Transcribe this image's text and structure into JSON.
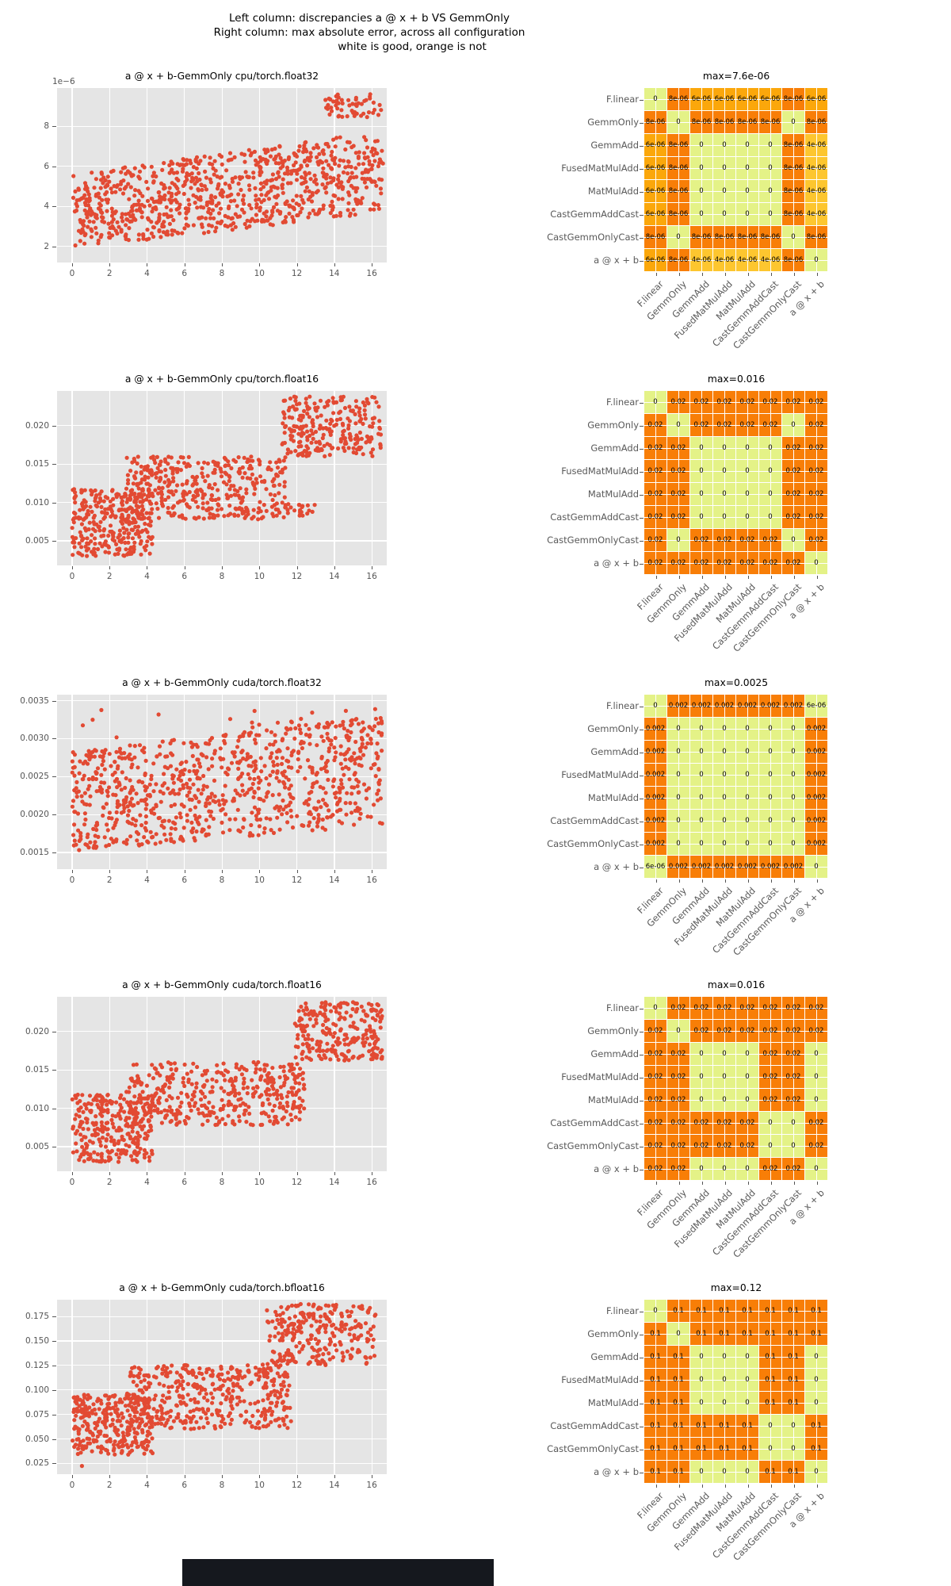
{
  "suptitle": {
    "line1": "Left column: discrepancies a @ x + b VS GemmOnly",
    "line2": "Right column: max absolute error, across all configuration",
    "line3": "white is good, orange is not"
  },
  "method_labels": [
    "F.linear",
    "GemmOnly",
    "GemmAdd",
    "FusedMatMulAdd",
    "MatMulAdd",
    "CastGemmAddCast",
    "CastGemmOnlyCast",
    "a @ x + b"
  ],
  "colors": {
    "point": "#e24a33",
    "plot_background": "#e5e5e5",
    "grid_line": "#ffffff",
    "tick_label": "#555555",
    "title_text": "#000000",
    "heat_scale": {
      "zero": "#e4f287",
      "low": "#fdc62f",
      "mid": "#fba70b",
      "high": "#f87e07"
    },
    "artifact_bar": "#15181e"
  },
  "scatter_xticks": [
    {
      "v": 0,
      "label": "0"
    },
    {
      "v": 2,
      "label": "2"
    },
    {
      "v": 4,
      "label": "4"
    },
    {
      "v": 6,
      "label": "6"
    },
    {
      "v": 8,
      "label": "8"
    },
    {
      "v": 10,
      "label": "10"
    },
    {
      "v": 12,
      "label": "12"
    },
    {
      "v": 14,
      "label": "14"
    },
    {
      "v": 16,
      "label": "16"
    }
  ],
  "chart_data": [
    {
      "type": "scatter",
      "id": "scatter-cpu-float32",
      "title": "a @ x + b-GemmOnly cpu/torch.float32",
      "offset_text": "1e−6",
      "xlim": [
        -0.8,
        16.8
      ],
      "ylim": [
        1.2,
        9.9
      ],
      "yticks": [
        {
          "v": 2,
          "label": "2"
        },
        {
          "v": 4,
          "label": "4"
        },
        {
          "v": 6,
          "label": "6"
        },
        {
          "v": 8,
          "label": "8"
        }
      ],
      "clusters": [
        {
          "n": 900,
          "x": [
            0,
            16.6
          ],
          "ylo": [
            1.9,
            3.7
          ],
          "yhi": [
            5.6,
            7.75
          ]
        },
        {
          "n": 55,
          "x": [
            13.5,
            16.6
          ],
          "ylo": [
            8.35,
            8.35
          ],
          "yhi": [
            9.6,
            9.6
          ]
        }
      ]
    },
    {
      "type": "heatmap",
      "id": "heatmap-cpu-float32",
      "title": "max=7.6e-06",
      "values": [
        [
          "0",
          "8e-06",
          "6e-06",
          "6e-06",
          "6e-06",
          "6e-06",
          "8e-06",
          "6e-06"
        ],
        [
          "8e-06",
          "0",
          "8e-06",
          "8e-06",
          "8e-06",
          "8e-06",
          "0",
          "8e-06"
        ],
        [
          "6e-06",
          "8e-06",
          "0",
          "0",
          "0",
          "0",
          "8e-06",
          "4e-06"
        ],
        [
          "6e-06",
          "8e-06",
          "0",
          "0",
          "0",
          "0",
          "8e-06",
          "4e-06"
        ],
        [
          "6e-06",
          "8e-06",
          "0",
          "0",
          "0",
          "0",
          "8e-06",
          "4e-06"
        ],
        [
          "6e-06",
          "8e-06",
          "0",
          "0",
          "0",
          "0",
          "8e-06",
          "4e-06"
        ],
        [
          "8e-06",
          "0",
          "8e-06",
          "8e-06",
          "8e-06",
          "8e-06",
          "0",
          "8e-06"
        ],
        [
          "6e-06",
          "8e-06",
          "4e-06",
          "4e-06",
          "4e-06",
          "4e-06",
          "8e-06",
          "0"
        ]
      ]
    },
    {
      "type": "scatter",
      "id": "scatter-cpu-float16",
      "title": "a @ x + b-GemmOnly cpu/torch.float16",
      "xlim": [
        -0.8,
        16.8
      ],
      "ylim": [
        0.0018,
        0.0245
      ],
      "yticks": [
        {
          "v": 0.005,
          "label": "0.005"
        },
        {
          "v": 0.01,
          "label": "0.010"
        },
        {
          "v": 0.015,
          "label": "0.015"
        },
        {
          "v": 0.02,
          "label": "0.020"
        }
      ],
      "clusters": [
        {
          "n": 300,
          "x": [
            0,
            4.3
          ],
          "ylo": [
            0.003,
            0.003
          ],
          "yhi": [
            0.0118,
            0.0118
          ]
        },
        {
          "n": 400,
          "x": [
            2.9,
            11.4
          ],
          "ylo": [
            0.0078,
            0.0078
          ],
          "yhi": [
            0.016,
            0.016
          ]
        },
        {
          "n": 250,
          "x": [
            11.2,
            16.6
          ],
          "ylo": [
            0.016,
            0.016
          ],
          "yhi": [
            0.0238,
            0.0238
          ]
        },
        {
          "n": 22,
          "x": [
            11.3,
            13.1
          ],
          "ylo": [
            0.008,
            0.008
          ],
          "yhi": [
            0.01,
            0.01
          ]
        }
      ]
    },
    {
      "type": "heatmap",
      "id": "heatmap-cpu-float16",
      "title": "max=0.016",
      "values": [
        [
          "0",
          "0.02",
          "0.02",
          "0.02",
          "0.02",
          "0.02",
          "0.02",
          "0.02"
        ],
        [
          "0.02",
          "0",
          "0.02",
          "0.02",
          "0.02",
          "0.02",
          "0",
          "0.02"
        ],
        [
          "0.02",
          "0.02",
          "0",
          "0",
          "0",
          "0",
          "0.02",
          "0.02"
        ],
        [
          "0.02",
          "0.02",
          "0",
          "0",
          "0",
          "0",
          "0.02",
          "0.02"
        ],
        [
          "0.02",
          "0.02",
          "0",
          "0",
          "0",
          "0",
          "0.02",
          "0.02"
        ],
        [
          "0.02",
          "0.02",
          "0",
          "0",
          "0",
          "0",
          "0.02",
          "0.02"
        ],
        [
          "0.02",
          "0",
          "0.02",
          "0.02",
          "0.02",
          "0.02",
          "0",
          "0.02"
        ],
        [
          "0.02",
          "0.02",
          "0.02",
          "0.02",
          "0.02",
          "0.02",
          "0.02",
          "0"
        ]
      ]
    },
    {
      "type": "scatter",
      "id": "scatter-cuda-float32",
      "title": "a @ x + b-GemmOnly cuda/torch.float32",
      "xlim": [
        -0.8,
        16.8
      ],
      "ylim": [
        0.00128,
        0.00358
      ],
      "yticks": [
        {
          "v": 0.0015,
          "label": "0.0015"
        },
        {
          "v": 0.002,
          "label": "0.0020"
        },
        {
          "v": 0.0025,
          "label": "0.0025"
        },
        {
          "v": 0.003,
          "label": "0.0030"
        },
        {
          "v": 0.0035,
          "label": "0.0035"
        }
      ],
      "clusters": [
        {
          "n": 880,
          "x": [
            0,
            16.6
          ],
          "ylo": [
            0.00152,
            0.00185
          ],
          "yhi": [
            0.00282,
            0.00332
          ]
        },
        {
          "n": 28,
          "x": [
            0.5,
            16.6
          ],
          "ylo": [
            0.0028,
            0.0028
          ],
          "yhi": [
            0.0034,
            0.0034
          ]
        },
        {
          "n": 1,
          "x": [
            16.0,
            16.2
          ],
          "ylo": [
            0.00338,
            0.00338
          ],
          "yhi": [
            0.00342,
            0.00342
          ]
        }
      ]
    },
    {
      "type": "heatmap",
      "id": "heatmap-cuda-float32",
      "title": "max=0.0025",
      "values": [
        [
          "0",
          "0.002",
          "0.002",
          "0.002",
          "0.002",
          "0.002",
          "0.002",
          "6e-06"
        ],
        [
          "0.002",
          "0",
          "0",
          "0",
          "0",
          "0",
          "0",
          "0.002"
        ],
        [
          "0.002",
          "0",
          "0",
          "0",
          "0",
          "0",
          "0",
          "0.002"
        ],
        [
          "0.002",
          "0",
          "0",
          "0",
          "0",
          "0",
          "0",
          "0.002"
        ],
        [
          "0.002",
          "0",
          "0",
          "0",
          "0",
          "0",
          "0",
          "0.002"
        ],
        [
          "0.002",
          "0",
          "0",
          "0",
          "0",
          "0",
          "0",
          "0.002"
        ],
        [
          "0.002",
          "0",
          "0",
          "0",
          "0",
          "0",
          "0",
          "0.002"
        ],
        [
          "6e-06",
          "0.002",
          "0.002",
          "0.002",
          "0.002",
          "0.002",
          "0.002",
          "0"
        ]
      ]
    },
    {
      "type": "scatter",
      "id": "scatter-cuda-float16",
      "title": "a @ x + b-GemmOnly cuda/torch.float16",
      "xlim": [
        -0.8,
        16.8
      ],
      "ylim": [
        0.0018,
        0.0245
      ],
      "yticks": [
        {
          "v": 0.005,
          "label": "0.005"
        },
        {
          "v": 0.01,
          "label": "0.010"
        },
        {
          "v": 0.015,
          "label": "0.015"
        },
        {
          "v": 0.02,
          "label": "0.020"
        }
      ],
      "clusters": [
        {
          "n": 300,
          "x": [
            0,
            4.3
          ],
          "ylo": [
            0.003,
            0.003
          ],
          "yhi": [
            0.0118,
            0.0118
          ]
        },
        {
          "n": 410,
          "x": [
            2.9,
            12.4
          ],
          "ylo": [
            0.0078,
            0.0078
          ],
          "yhi": [
            0.016,
            0.016
          ]
        },
        {
          "n": 255,
          "x": [
            11.9,
            16.6
          ],
          "ylo": [
            0.016,
            0.016
          ],
          "yhi": [
            0.0238,
            0.0238
          ]
        }
      ]
    },
    {
      "type": "heatmap",
      "id": "heatmap-cuda-float16",
      "title": "max=0.016",
      "values": [
        [
          "0",
          "0.02",
          "0.02",
          "0.02",
          "0.02",
          "0.02",
          "0.02",
          "0.02"
        ],
        [
          "0.02",
          "0",
          "0.02",
          "0.02",
          "0.02",
          "0.02",
          "0.02",
          "0.02"
        ],
        [
          "0.02",
          "0.02",
          "0",
          "0",
          "0",
          "0.02",
          "0.02",
          "0"
        ],
        [
          "0.02",
          "0.02",
          "0",
          "0",
          "0",
          "0.02",
          "0.02",
          "0"
        ],
        [
          "0.02",
          "0.02",
          "0",
          "0",
          "0",
          "0.02",
          "0.02",
          "0"
        ],
        [
          "0.02",
          "0.02",
          "0.02",
          "0.02",
          "0.02",
          "0",
          "0",
          "0.02"
        ],
        [
          "0.02",
          "0.02",
          "0.02",
          "0.02",
          "0.02",
          "0",
          "0",
          "0.02"
        ],
        [
          "0.02",
          "0.02",
          "0",
          "0",
          "0",
          "0.02",
          "0.02",
          "0"
        ]
      ]
    },
    {
      "type": "scatter",
      "id": "scatter-cuda-bfloat16",
      "title": "a @ x + b-GemmOnly cuda/torch.bfloat16",
      "xlim": [
        -0.8,
        16.8
      ],
      "ylim": [
        0.014,
        0.192
      ],
      "yticks": [
        {
          "v": 0.025,
          "label": "0.025"
        },
        {
          "v": 0.05,
          "label": "0.050"
        },
        {
          "v": 0.075,
          "label": "0.075"
        },
        {
          "v": 0.1,
          "label": "0.100"
        },
        {
          "v": 0.125,
          "label": "0.125"
        },
        {
          "v": 0.15,
          "label": "0.150"
        },
        {
          "v": 0.175,
          "label": "0.175"
        }
      ],
      "clusters": [
        {
          "n": 300,
          "x": [
            0,
            4.3
          ],
          "ylo": [
            0.034,
            0.034
          ],
          "yhi": [
            0.096,
            0.096
          ]
        },
        {
          "n": 410,
          "x": [
            2.9,
            11.7
          ],
          "ylo": [
            0.06,
            0.06
          ],
          "yhi": [
            0.126,
            0.126
          ]
        },
        {
          "n": 265,
          "x": [
            10.4,
            16.2
          ],
          "ylo": [
            0.125,
            0.125
          ],
          "yhi": [
            0.188,
            0.188
          ]
        },
        {
          "n": 1,
          "x": [
            0.5,
            0.6
          ],
          "ylo": [
            0.021,
            0.021
          ],
          "yhi": [
            0.023,
            0.023
          ]
        }
      ]
    },
    {
      "type": "heatmap",
      "id": "heatmap-cuda-bfloat16",
      "title": "max=0.12",
      "values": [
        [
          "0",
          "0.1",
          "0.1",
          "0.1",
          "0.1",
          "0.1",
          "0.1",
          "0.1"
        ],
        [
          "0.1",
          "0",
          "0.1",
          "0.1",
          "0.1",
          "0.1",
          "0.1",
          "0.1"
        ],
        [
          "0.1",
          "0.1",
          "0",
          "0",
          "0",
          "0.1",
          "0.1",
          "0"
        ],
        [
          "0.1",
          "0.1",
          "0",
          "0",
          "0",
          "0.1",
          "0.1",
          "0"
        ],
        [
          "0.1",
          "0.1",
          "0",
          "0",
          "0",
          "0.1",
          "0.1",
          "0"
        ],
        [
          "0.1",
          "0.1",
          "0.1",
          "0.1",
          "0.1",
          "0",
          "0",
          "0.1"
        ],
        [
          "0.1",
          "0.1",
          "0.1",
          "0.1",
          "0.1",
          "0",
          "0",
          "0.1"
        ],
        [
          "0.1",
          "0.1",
          "0",
          "0",
          "0",
          "0.1",
          "0.1",
          "0"
        ]
      ]
    }
  ]
}
